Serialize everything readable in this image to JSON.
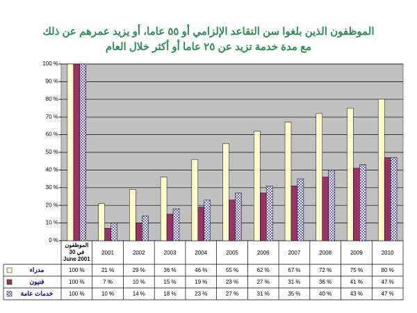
{
  "chart_data": {
    "type": "bar",
    "title": [
      "الموظفون الذين بلغوا سن التقاعد الإلزامي أو ٥٥ عاما، أو يزيد عمرهم عن ذلك",
      "مع مدة خدمة تزيد عن ٢٥ عاما أو أكثر خلال العام"
    ],
    "categories": [
      "الموظفون في 30 June 2001",
      "2001",
      "2002",
      "2003",
      "2004",
      "2005",
      "2006",
      "2007",
      "2008",
      "2009",
      "2010"
    ],
    "series": [
      {
        "name": "مدراء",
        "color": "#FFFFCC",
        "values": [
          100,
          21,
          29,
          36,
          46,
          55,
          62,
          67,
          72,
          75,
          80
        ],
        "value_labels": [
          "100 %",
          "21 %",
          "29 %",
          "36 %",
          "46 %",
          "55 %",
          "62 %",
          "67 %",
          "72 %",
          "75 %",
          "80 %"
        ]
      },
      {
        "name": "فنيون",
        "color": "#993366",
        "values": [
          100,
          7,
          10,
          15,
          19,
          23,
          27,
          31,
          36,
          41,
          47
        ],
        "value_labels": [
          "100 %",
          "7 %",
          "10 %",
          "15 %",
          "19 %",
          "23 %",
          "27 %",
          "31 %",
          "36 %",
          "41 %",
          "47 %"
        ]
      },
      {
        "name": "خدمات عامة",
        "color": "#6666CC",
        "pattern": "checker",
        "values": [
          100,
          10,
          14,
          18,
          23,
          27,
          31,
          35,
          40,
          43,
          47
        ],
        "value_labels": [
          "100 %",
          "10 %",
          "14 %",
          "18 %",
          "23 %",
          "27 %",
          "31 %",
          "35 %",
          "40 %",
          "43 %",
          "47 %"
        ]
      }
    ],
    "ylim": [
      0,
      100
    ],
    "yticks": [
      {
        "value": 0,
        "label": "0 %"
      },
      {
        "value": 10,
        "label": "10 %"
      },
      {
        "value": 20,
        "label": "20 %"
      },
      {
        "value": 30,
        "label": "30 %"
      },
      {
        "value": 40,
        "label": "40 %"
      },
      {
        "value": 50,
        "label": "50 %"
      },
      {
        "value": 60,
        "label": "60 %"
      },
      {
        "value": 70,
        "label": "70 %"
      },
      {
        "value": 80,
        "label": "80 %"
      },
      {
        "value": 90,
        "label": "90 %"
      },
      {
        "value": 100,
        "label": "100 %"
      }
    ],
    "grid": true
  }
}
